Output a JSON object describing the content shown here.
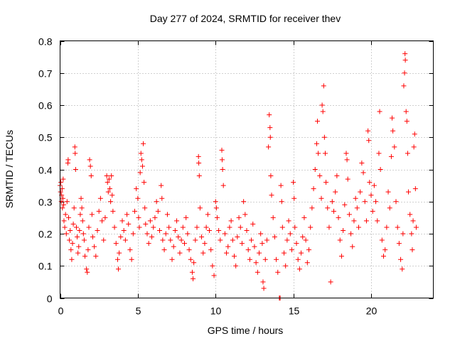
{
  "chart_data": {
    "type": "scatter",
    "title": "Day 277 of 2024, SRMTID for receiver thev",
    "xlabel": "GPS time / hours",
    "ylabel": "SRMTID / TECUs",
    "xlim": [
      0,
      24
    ],
    "ylim": [
      0,
      0.8
    ],
    "x_ticks": [
      0,
      5,
      10,
      15,
      20
    ],
    "x_tick_labels": [
      "0",
      "5",
      "10",
      "15",
      "20"
    ],
    "y_ticks": [
      0,
      0.1,
      0.2,
      0.3,
      0.4,
      0.5,
      0.6,
      0.7,
      0.8
    ],
    "y_tick_labels": [
      "0",
      "0.1",
      "0.2",
      "0.3",
      "0.4",
      "0.5",
      "0.6",
      "0.7",
      "0.8"
    ],
    "grid": true,
    "marker": "plus",
    "color": "#ff0000",
    "point_count_note": "approximate; dense scatter summarized by sampled points",
    "series": [
      {
        "name": "SRMTID",
        "points": [
          [
            0.0,
            0.35
          ],
          [
            0.03,
            0.33
          ],
          [
            0.05,
            0.36
          ],
          [
            0.08,
            0.3
          ],
          [
            0.1,
            0.32
          ],
          [
            0.13,
            0.34
          ],
          [
            0.15,
            0.28
          ],
          [
            0.18,
            0.31
          ],
          [
            0.2,
            0.37
          ],
          [
            0.23,
            0.29
          ],
          [
            0.25,
            0.24
          ],
          [
            0.3,
            0.22
          ],
          [
            0.35,
            0.26
          ],
          [
            0.4,
            0.2
          ],
          [
            0.45,
            0.3
          ],
          [
            0.5,
            0.42
          ],
          [
            0.52,
            0.43
          ],
          [
            0.55,
            0.25
          ],
          [
            0.6,
            0.18
          ],
          [
            0.65,
            0.21
          ],
          [
            0.7,
            0.15
          ],
          [
            0.75,
            0.12
          ],
          [
            0.8,
            0.17
          ],
          [
            0.85,
            0.23
          ],
          [
            0.9,
            0.28
          ],
          [
            0.95,
            0.47
          ],
          [
            0.97,
            0.45
          ],
          [
            1.0,
            0.4
          ],
          [
            1.05,
            0.22
          ],
          [
            1.1,
            0.19
          ],
          [
            1.15,
            0.14
          ],
          [
            1.2,
            0.16
          ],
          [
            1.25,
            0.21
          ],
          [
            1.3,
            0.26
          ],
          [
            1.35,
            0.31
          ],
          [
            1.4,
            0.28
          ],
          [
            1.45,
            0.24
          ],
          [
            1.5,
            0.2
          ],
          [
            1.55,
            0.18
          ],
          [
            1.6,
            0.13
          ],
          [
            1.7,
            0.09
          ],
          [
            1.75,
            0.08
          ],
          [
            1.8,
            0.15
          ],
          [
            1.85,
            0.22
          ],
          [
            1.9,
            0.43
          ],
          [
            1.95,
            0.41
          ],
          [
            2.0,
            0.38
          ],
          [
            2.05,
            0.26
          ],
          [
            2.1,
            0.19
          ],
          [
            2.2,
            0.16
          ],
          [
            2.3,
            0.13
          ],
          [
            2.4,
            0.21
          ],
          [
            2.5,
            0.27
          ],
          [
            2.6,
            0.31
          ],
          [
            2.7,
            0.24
          ],
          [
            2.8,
            0.18
          ],
          [
            2.9,
            0.25
          ],
          [
            3.0,
            0.38
          ],
          [
            3.05,
            0.36
          ],
          [
            3.1,
            0.33
          ],
          [
            3.15,
            0.37
          ],
          [
            3.2,
            0.34
          ],
          [
            3.25,
            0.3
          ],
          [
            3.3,
            0.38
          ],
          [
            3.35,
            0.32
          ],
          [
            3.4,
            0.27
          ],
          [
            3.5,
            0.22
          ],
          [
            3.6,
            0.17
          ],
          [
            3.7,
            0.12
          ],
          [
            3.75,
            0.09
          ],
          [
            3.8,
            0.14
          ],
          [
            3.9,
            0.19
          ],
          [
            4.0,
            0.24
          ],
          [
            4.1,
            0.21
          ],
          [
            4.2,
            0.18
          ],
          [
            4.3,
            0.26
          ],
          [
            4.4,
            0.23
          ],
          [
            4.5,
            0.15
          ],
          [
            4.6,
            0.12
          ],
          [
            4.7,
            0.2
          ],
          [
            4.8,
            0.27
          ],
          [
            4.9,
            0.34
          ],
          [
            5.0,
            0.31
          ],
          [
            5.05,
            0.25
          ],
          [
            5.1,
            0.22
          ],
          [
            5.15,
            0.39
          ],
          [
            5.2,
            0.45
          ],
          [
            5.25,
            0.43
          ],
          [
            5.3,
            0.41
          ],
          [
            5.35,
            0.48
          ],
          [
            5.4,
            0.36
          ],
          [
            5.45,
            0.28
          ],
          [
            5.5,
            0.23
          ],
          [
            5.6,
            0.2
          ],
          [
            5.7,
            0.17
          ],
          [
            5.8,
            0.24
          ],
          [
            5.9,
            0.19
          ],
          [
            6.0,
            0.22
          ],
          [
            6.1,
            0.25
          ],
          [
            6.2,
            0.3
          ],
          [
            6.3,
            0.27
          ],
          [
            6.4,
            0.21
          ],
          [
            6.5,
            0.35
          ],
          [
            6.55,
            0.31
          ],
          [
            6.6,
            0.18
          ],
          [
            6.7,
            0.15
          ],
          [
            6.8,
            0.2
          ],
          [
            6.9,
            0.26
          ],
          [
            7.0,
            0.22
          ],
          [
            7.1,
            0.18
          ],
          [
            7.2,
            0.12
          ],
          [
            7.3,
            0.16
          ],
          [
            7.4,
            0.21
          ],
          [
            7.5,
            0.24
          ],
          [
            7.6,
            0.19
          ],
          [
            7.7,
            0.14
          ],
          [
            7.8,
            0.18
          ],
          [
            7.9,
            0.22
          ],
          [
            8.0,
            0.17
          ],
          [
            8.1,
            0.25
          ],
          [
            8.2,
            0.2
          ],
          [
            8.3,
            0.15
          ],
          [
            8.4,
            0.12
          ],
          [
            8.5,
            0.08
          ],
          [
            8.55,
            0.06
          ],
          [
            8.6,
            0.11
          ],
          [
            8.7,
            0.18
          ],
          [
            8.8,
            0.22
          ],
          [
            8.9,
            0.44
          ],
          [
            8.92,
            0.42
          ],
          [
            8.95,
            0.38
          ],
          [
            9.0,
            0.28
          ],
          [
            9.1,
            0.19
          ],
          [
            9.2,
            0.14
          ],
          [
            9.3,
            0.17
          ],
          [
            9.4,
            0.22
          ],
          [
            9.5,
            0.26
          ],
          [
            9.6,
            0.21
          ],
          [
            9.7,
            0.15
          ],
          [
            9.8,
            0.1
          ],
          [
            9.9,
            0.07
          ],
          [
            10.0,
            0.3
          ],
          [
            10.05,
            0.28
          ],
          [
            10.1,
            0.25
          ],
          [
            10.2,
            0.21
          ],
          [
            10.3,
            0.18
          ],
          [
            10.4,
            0.46
          ],
          [
            10.42,
            0.43
          ],
          [
            10.45,
            0.4
          ],
          [
            10.5,
            0.35
          ],
          [
            10.6,
            0.2
          ],
          [
            10.7,
            0.14
          ],
          [
            10.8,
            0.16
          ],
          [
            10.9,
            0.22
          ],
          [
            11.0,
            0.24
          ],
          [
            11.1,
            0.18
          ],
          [
            11.2,
            0.13
          ],
          [
            11.3,
            0.1
          ],
          [
            11.4,
            0.19
          ],
          [
            11.5,
            0.25
          ],
          [
            11.6,
            0.22
          ],
          [
            11.7,
            0.17
          ],
          [
            11.8,
            0.3
          ],
          [
            11.9,
            0.26
          ],
          [
            12.0,
            0.21
          ],
          [
            12.1,
            0.15
          ],
          [
            12.2,
            0.12
          ],
          [
            12.3,
            0.18
          ],
          [
            12.4,
            0.23
          ],
          [
            12.5,
            0.16
          ],
          [
            12.6,
            0.11
          ],
          [
            12.7,
            0.08
          ],
          [
            12.8,
            0.14
          ],
          [
            12.9,
            0.2
          ],
          [
            13.0,
            0.17
          ],
          [
            13.05,
            0.05
          ],
          [
            13.1,
            0.03
          ],
          [
            13.2,
            0.12
          ],
          [
            13.3,
            0.18
          ],
          [
            13.4,
            0.47
          ],
          [
            13.45,
            0.57
          ],
          [
            13.5,
            0.53
          ],
          [
            13.52,
            0.5
          ],
          [
            13.55,
            0.38
          ],
          [
            13.6,
            0.32
          ],
          [
            13.7,
            0.25
          ],
          [
            13.8,
            0.19
          ],
          [
            13.9,
            0.12
          ],
          [
            14.0,
            0.08
          ],
          [
            14.1,
            0.0
          ],
          [
            14.15,
            0.0
          ],
          [
            14.2,
            0.35
          ],
          [
            14.25,
            0.3
          ],
          [
            14.3,
            0.22
          ],
          [
            14.4,
            0.14
          ],
          [
            14.5,
            0.1
          ],
          [
            14.6,
            0.18
          ],
          [
            14.7,
            0.24
          ],
          [
            14.8,
            0.2
          ],
          [
            14.9,
            0.15
          ],
          [
            15.0,
            0.36
          ],
          [
            15.05,
            0.31
          ],
          [
            15.1,
            0.22
          ],
          [
            15.2,
            0.17
          ],
          [
            15.3,
            0.12
          ],
          [
            15.4,
            0.09
          ],
          [
            15.5,
            0.14
          ],
          [
            15.6,
            0.19
          ],
          [
            15.7,
            0.25
          ],
          [
            15.8,
            0.18
          ],
          [
            15.9,
            0.11
          ],
          [
            16.0,
            0.15
          ],
          [
            16.1,
            0.22
          ],
          [
            16.2,
            0.28
          ],
          [
            16.3,
            0.34
          ],
          [
            16.4,
            0.4
          ],
          [
            16.5,
            0.48
          ],
          [
            16.55,
            0.55
          ],
          [
            16.6,
            0.45
          ],
          [
            16.7,
            0.38
          ],
          [
            16.8,
            0.31
          ],
          [
            16.85,
            0.6
          ],
          [
            16.9,
            0.58
          ],
          [
            16.95,
            0.66
          ],
          [
            17.0,
            0.5
          ],
          [
            17.05,
            0.45
          ],
          [
            17.1,
            0.36
          ],
          [
            17.2,
            0.28
          ],
          [
            17.3,
            0.22
          ],
          [
            17.4,
            0.05
          ],
          [
            17.5,
            0.3
          ],
          [
            17.6,
            0.27
          ],
          [
            17.7,
            0.33
          ],
          [
            17.8,
            0.38
          ],
          [
            17.9,
            0.25
          ],
          [
            18.0,
            0.18
          ],
          [
            18.1,
            0.13
          ],
          [
            18.2,
            0.21
          ],
          [
            18.3,
            0.29
          ],
          [
            18.4,
            0.45
          ],
          [
            18.45,
            0.43
          ],
          [
            18.5,
            0.37
          ],
          [
            18.6,
            0.26
          ],
          [
            18.7,
            0.2
          ],
          [
            18.8,
            0.16
          ],
          [
            18.9,
            0.24
          ],
          [
            19.0,
            0.31
          ],
          [
            19.1,
            0.28
          ],
          [
            19.2,
            0.22
          ],
          [
            19.3,
            0.33
          ],
          [
            19.4,
            0.42
          ],
          [
            19.5,
            0.39
          ],
          [
            19.6,
            0.3
          ],
          [
            19.7,
            0.24
          ],
          [
            19.8,
            0.52
          ],
          [
            19.85,
            0.49
          ],
          [
            19.9,
            0.36
          ],
          [
            20.0,
            0.32
          ],
          [
            20.1,
            0.27
          ],
          [
            20.2,
            0.35
          ],
          [
            20.3,
            0.3
          ],
          [
            20.4,
            0.24
          ],
          [
            20.5,
            0.45
          ],
          [
            20.55,
            0.58
          ],
          [
            20.6,
            0.4
          ],
          [
            20.7,
            0.18
          ],
          [
            20.8,
            0.13
          ],
          [
            20.9,
            0.15
          ],
          [
            21.0,
            0.22
          ],
          [
            21.1,
            0.33
          ],
          [
            21.2,
            0.28
          ],
          [
            21.3,
            0.44
          ],
          [
            21.35,
            0.56
          ],
          [
            21.4,
            0.52
          ],
          [
            21.5,
            0.47
          ],
          [
            21.6,
            0.3
          ],
          [
            21.7,
            0.22
          ],
          [
            21.8,
            0.17
          ],
          [
            21.9,
            0.12
          ],
          [
            22.0,
            0.09
          ],
          [
            22.05,
            0.2
          ],
          [
            22.1,
            0.66
          ],
          [
            22.15,
            0.7
          ],
          [
            22.18,
            0.76
          ],
          [
            22.2,
            0.74
          ],
          [
            22.25,
            0.58
          ],
          [
            22.3,
            0.55
          ],
          [
            22.35,
            0.45
          ],
          [
            22.4,
            0.33
          ],
          [
            22.5,
            0.26
          ],
          [
            22.6,
            0.2
          ],
          [
            22.65,
            0.15
          ],
          [
            22.7,
            0.24
          ],
          [
            22.75,
            0.47
          ],
          [
            22.8,
            0.51
          ],
          [
            22.85,
            0.34
          ],
          [
            22.9,
            0.22
          ]
        ]
      }
    ]
  }
}
